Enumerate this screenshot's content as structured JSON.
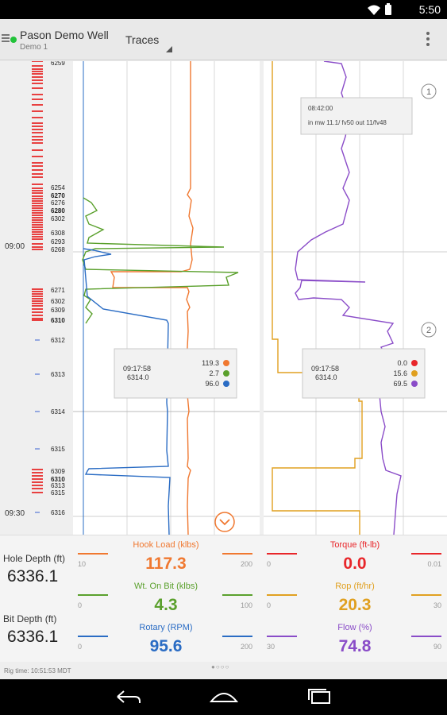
{
  "status_bar": {
    "time": "5:50"
  },
  "app_bar": {
    "well_name": "Pason Demo Well",
    "well_sub": "Demo 1",
    "view": "Traces"
  },
  "chart": {
    "time_labels": [
      "09:00",
      "09:30"
    ],
    "depth_labels": [
      {
        "t": "6259",
        "bold": false
      },
      {
        "t": "6254",
        "bold": false
      },
      {
        "t": "6270",
        "bold": true
      },
      {
        "t": "6276",
        "bold": false
      },
      {
        "t": "6280",
        "bold": true
      },
      {
        "t": "6302",
        "bold": false
      },
      {
        "t": "6308",
        "bold": false
      },
      {
        "t": "6293",
        "bold": false
      },
      {
        "t": "6268",
        "bold": false
      },
      {
        "t": "6271",
        "bold": false
      },
      {
        "t": "6302",
        "bold": false
      },
      {
        "t": "6309",
        "bold": false
      },
      {
        "t": "6310",
        "bold": true
      },
      {
        "t": "6312",
        "bold": false
      },
      {
        "t": "6313",
        "bold": false
      },
      {
        "t": "6314",
        "bold": false
      },
      {
        "t": "6315",
        "bold": false
      },
      {
        "t": "6309",
        "bold": false
      },
      {
        "t": "6310",
        "bold": true
      },
      {
        "t": "6313",
        "bold": false
      },
      {
        "t": "6315",
        "bold": false
      },
      {
        "t": "6316",
        "bold": false
      }
    ],
    "annotation": {
      "number": "1",
      "time": "08:42:00",
      "text": "in mw 11.1/ fv50 out 11/fv48"
    },
    "marker2": "2",
    "tooltip_left": {
      "time": "09:17:58",
      "depth": "6314.0",
      "values": [
        {
          "v": "119.3",
          "color": "#f07830"
        },
        {
          "v": "2.7",
          "color": "#5aa02c"
        },
        {
          "v": "96.0",
          "color": "#2a6cc4"
        }
      ]
    },
    "tooltip_right": {
      "time": "09:17:58",
      "depth": "6314.0",
      "values": [
        {
          "v": "0.0",
          "color": "#e8262a"
        },
        {
          "v": "15.6",
          "color": "#e0a020"
        },
        {
          "v": "69.5",
          "color": "#8a4cc8"
        }
      ]
    }
  },
  "depths": {
    "hole_label": "Hole Depth (ft)",
    "hole_value": "6336.1",
    "bit_label": "Bit Depth (ft)",
    "bit_value": "6336.1"
  },
  "readouts": [
    {
      "label": "Hook Load  (klbs)",
      "value": "117.3",
      "min": "10",
      "max": "200",
      "color": "#f07830"
    },
    {
      "label": "Torque  (ft-lb)",
      "value": "0.0",
      "min": "0",
      "max": "0.01",
      "color": "#e8262a"
    },
    {
      "label": "Wt. On Bit  (klbs)",
      "value": "4.3",
      "min": "0",
      "max": "100",
      "color": "#5aa02c"
    },
    {
      "label": "Rop  (ft/hr)",
      "value": "20.3",
      "min": "0",
      "max": "30",
      "color": "#e0a020"
    },
    {
      "label": "Rotary  (RPM)",
      "value": "95.6",
      "min": "0",
      "max": "200",
      "color": "#2a6cc4"
    },
    {
      "label": "Flow  (%)",
      "value": "74.8",
      "min": "30",
      "max": "90",
      "color": "#8a4cc8"
    }
  ],
  "pager": "●○○○",
  "rig_time": "Rig time: 10:51:53 MDT"
}
